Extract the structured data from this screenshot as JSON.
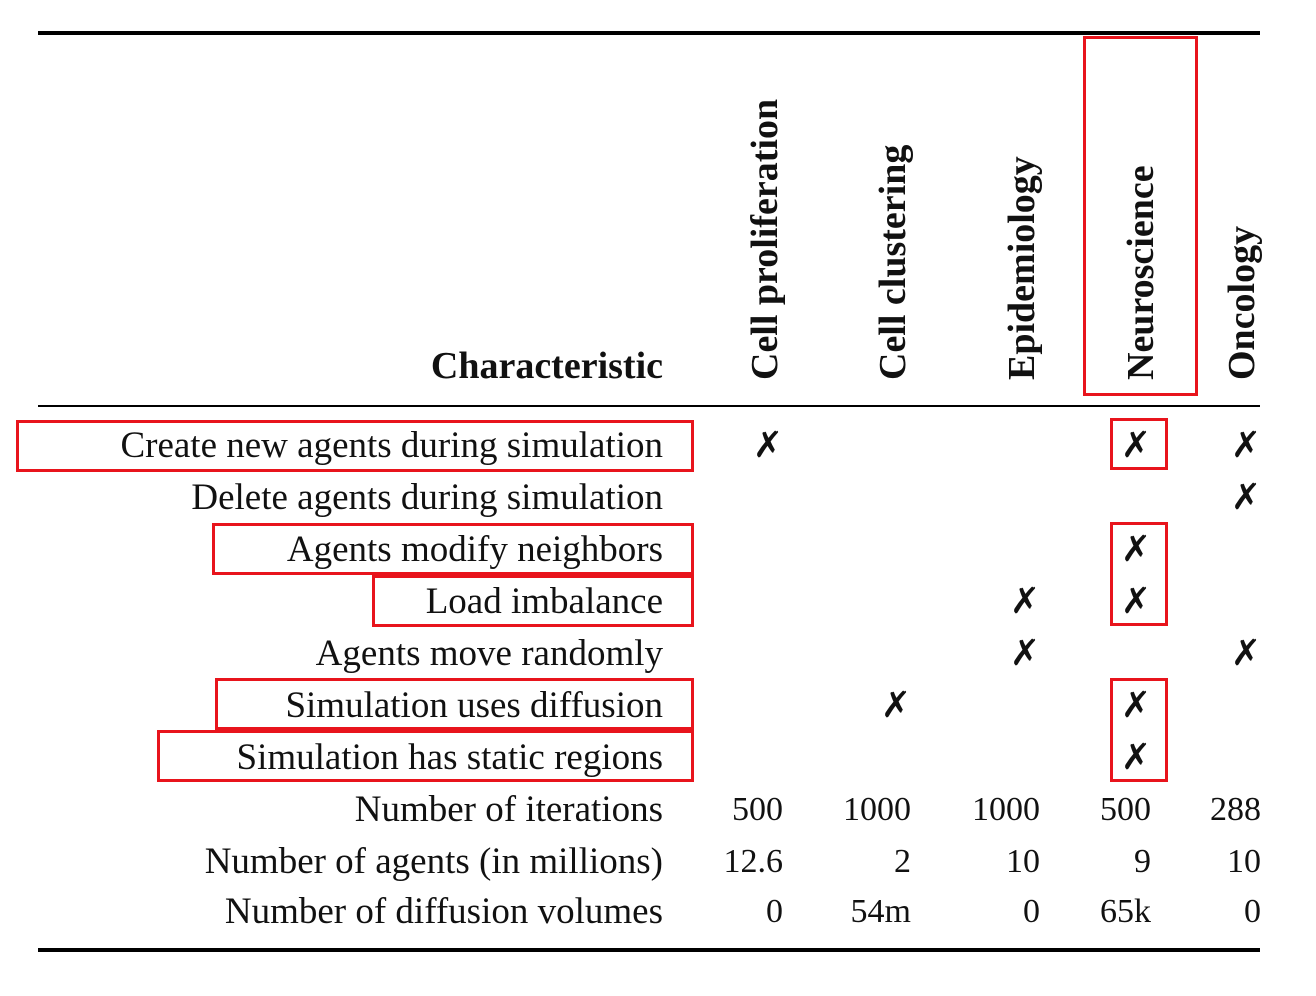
{
  "table": {
    "corner_header": "Characteristic",
    "columns": [
      "Cell proliferation",
      "Cell clustering",
      "Epidemiology",
      "Neuroscience",
      "Oncology"
    ],
    "mark_symbol": "✗",
    "rows": [
      {
        "label": "Create new agents during simulation",
        "cells": [
          "✗",
          "",
          "",
          "✗",
          "✗"
        ]
      },
      {
        "label": "Delete agents during simulation",
        "cells": [
          "",
          "",
          "",
          "",
          "✗"
        ]
      },
      {
        "label": "Agents modify neighbors",
        "cells": [
          "",
          "",
          "",
          "✗",
          ""
        ]
      },
      {
        "label": "Load imbalance",
        "cells": [
          "",
          "",
          "✗",
          "✗",
          ""
        ]
      },
      {
        "label": "Agents move randomly",
        "cells": [
          "",
          "",
          "✗",
          "",
          "✗"
        ]
      },
      {
        "label": "Simulation uses diffusion",
        "cells": [
          "",
          "✗",
          "",
          "✗",
          ""
        ]
      },
      {
        "label": "Simulation has static regions",
        "cells": [
          "",
          "",
          "",
          "✗",
          ""
        ]
      },
      {
        "label": "Number of iterations",
        "cells": [
          "500",
          "1000",
          "1000",
          "500",
          "288"
        ]
      },
      {
        "label": "Number of agents (in millions)",
        "cells": [
          "12.6",
          "2",
          "10",
          "9",
          "10"
        ]
      },
      {
        "label": "Number of diffusion volumes",
        "cells": [
          "0",
          "54m",
          "0",
          "65k",
          "0"
        ]
      }
    ]
  },
  "highlight_color": "#e8141c"
}
